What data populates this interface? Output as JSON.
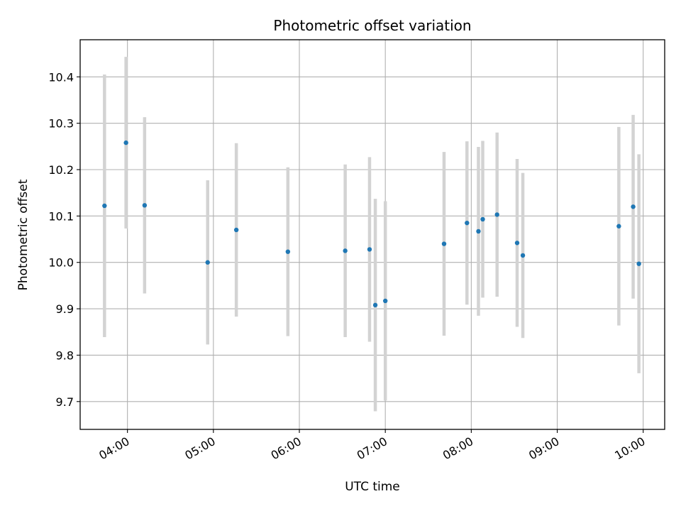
{
  "chart_data": {
    "type": "scatter",
    "title": "Photometric offset variation",
    "xlabel": "UTC time",
    "ylabel": "Photometric offset",
    "grid": true,
    "xlim": [
      "03:27",
      "10:15"
    ],
    "ylim": [
      9.64,
      10.48
    ],
    "xticks": [
      "04:00",
      "05:00",
      "06:00",
      "07:00",
      "08:00",
      "09:00",
      "10:00"
    ],
    "yticks": [
      9.7,
      9.8,
      9.9,
      10.0,
      10.1,
      10.2,
      10.3,
      10.4
    ],
    "colors": {
      "point": "#1f77b4",
      "errorbar": "#d3d3d3",
      "grid": "#b0b0b0"
    },
    "points": [
      {
        "x": "03:44",
        "y": 10.122,
        "err": 0.283
      },
      {
        "x": "03:59",
        "y": 10.258,
        "err": 0.185
      },
      {
        "x": "04:12",
        "y": 10.123,
        "err": 0.19
      },
      {
        "x": "04:56",
        "y": 10.0,
        "err": 0.177
      },
      {
        "x": "05:16",
        "y": 10.07,
        "err": 0.187
      },
      {
        "x": "05:52",
        "y": 10.023,
        "err": 0.182
      },
      {
        "x": "06:32",
        "y": 10.025,
        "err": 0.186
      },
      {
        "x": "06:49",
        "y": 10.028,
        "err": 0.199
      },
      {
        "x": "06:53",
        "y": 9.908,
        "err": 0.229
      },
      {
        "x": "07:00",
        "y": 9.917,
        "err": 0.215
      },
      {
        "x": "07:41",
        "y": 10.04,
        "err": 0.198
      },
      {
        "x": "07:57",
        "y": 10.085,
        "err": 0.176
      },
      {
        "x": "08:05",
        "y": 10.067,
        "err": 0.182
      },
      {
        "x": "08:08",
        "y": 10.093,
        "err": 0.169
      },
      {
        "x": "08:18",
        "y": 10.103,
        "err": 0.177
      },
      {
        "x": "08:32",
        "y": 10.042,
        "err": 0.181
      },
      {
        "x": "08:36",
        "y": 10.015,
        "err": 0.178
      },
      {
        "x": "09:43",
        "y": 10.078,
        "err": 0.214
      },
      {
        "x": "09:53",
        "y": 10.12,
        "err": 0.198
      },
      {
        "x": "09:57",
        "y": 9.997,
        "err": 0.236
      }
    ]
  }
}
